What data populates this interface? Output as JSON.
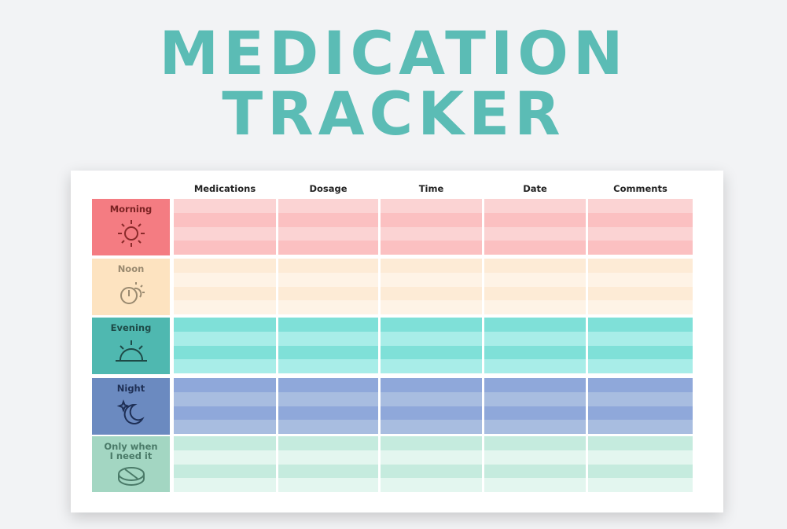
{
  "title": {
    "lines": [
      "MEDICATION",
      "TRACKER"
    ]
  },
  "table": {
    "columns": [
      "Medications",
      "Dosage",
      "Time",
      "Date",
      "Comments"
    ],
    "rows": [
      {
        "label": "Morning"
      },
      {
        "label": "Noon"
      },
      {
        "label": "Evening"
      },
      {
        "label": "Night"
      },
      {
        "label": "Only when I need it"
      }
    ]
  }
}
